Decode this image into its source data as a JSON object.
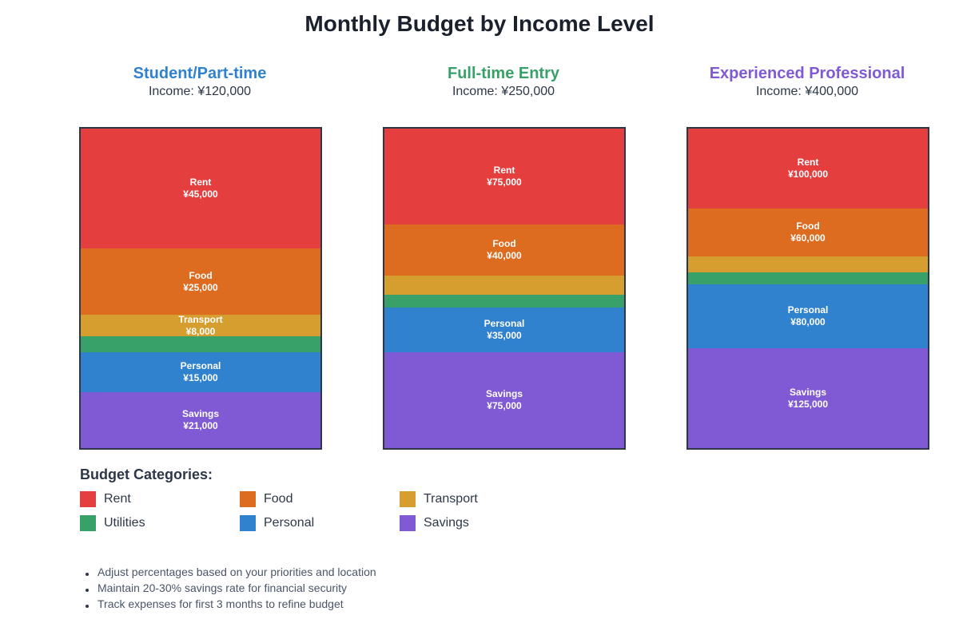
{
  "chart_data": {
    "type": "stacked-bar",
    "title": "Monthly Budget by Income Level",
    "currency": "¥",
    "categories": [
      "Rent",
      "Food",
      "Transport",
      "Utilities",
      "Personal",
      "Savings"
    ],
    "colors": {
      "Rent": "#e53e3e",
      "Food": "#dd6b20",
      "Transport": "#d69e2e",
      "Utilities": "#38a169",
      "Personal": "#3182ce",
      "Savings": "#805ad5"
    },
    "panels": [
      {
        "title": "Student/Part-time",
        "title_color": "#3182ce",
        "income_label": "Income: ¥120,000",
        "income": 120000,
        "values": [
          45000,
          25000,
          8000,
          6000,
          15000,
          21000
        ],
        "labeled": [
          true,
          true,
          true,
          false,
          true,
          true
        ]
      },
      {
        "title": "Full-time Entry",
        "title_color": "#38a169",
        "income_label": "Income: ¥250,000",
        "income": 250000,
        "values": [
          75000,
          40000,
          15000,
          10000,
          35000,
          75000
        ],
        "labeled": [
          true,
          true,
          false,
          false,
          true,
          true
        ]
      },
      {
        "title": "Experienced Professional",
        "title_color": "#805ad5",
        "income_label": "Income: ¥400,000",
        "income": 400000,
        "values": [
          100000,
          60000,
          20000,
          15000,
          80000,
          125000
        ],
        "labeled": [
          true,
          true,
          false,
          false,
          true,
          true
        ]
      }
    ]
  },
  "legend": {
    "title": "Budget Categories:",
    "items": [
      "Rent",
      "Food",
      "Transport",
      "Utilities",
      "Personal",
      "Savings"
    ]
  },
  "tips": [
    "Adjust percentages based on your priorities and location",
    "Maintain 20-30% savings rate for financial security",
    "Track expenses for first 3 months to refine budget"
  ]
}
